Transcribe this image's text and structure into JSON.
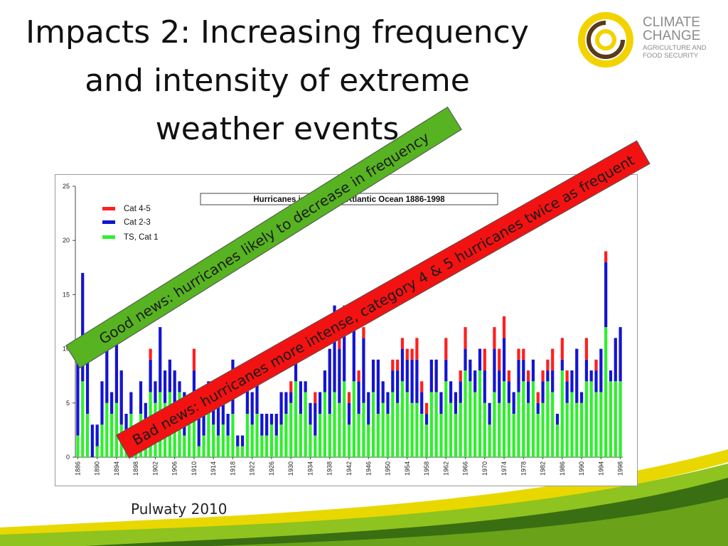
{
  "slide": {
    "title_lines": [
      "Impacts 2: Increasing frequency",
      "and intensity of extreme",
      "weather events"
    ],
    "source": "Pulwaty 2010",
    "good_news": "Good news: hurricanes likely to decrease in frequency",
    "bad_news": "Bad news: hurricanes more intense, category 4 & 5 hurricanes twice as frequent"
  },
  "logo": {
    "line1": "CLIMATE",
    "line2": "CHANGE",
    "line3": "AGRICULTURE AND",
    "line4": "FOOD SECURITY",
    "colors": {
      "ring_outer": "#f2d300",
      "ring_inner": "#5a3a1a",
      "text": "#8a8b8c"
    }
  },
  "colors": {
    "good_banner": "#57b321",
    "bad_banner": "#f21212",
    "bottom_swoosh_yellow": "#e8d800",
    "bottom_swoosh_green": "#8fc31f",
    "bottom_swoosh_dark": "#3a6e12"
  },
  "chart_data": {
    "type": "bar",
    "stacked": true,
    "title": "Hurricanes in the North Atlantic Ocean 1886-1998",
    "ylim": [
      0,
      25
    ],
    "yticks": [
      0,
      5,
      10,
      15,
      20,
      25
    ],
    "grid": false,
    "legend_position": "top-left",
    "x_tick_labels": [
      "1886",
      "1890",
      "1894",
      "1898",
      "1902",
      "1906",
      "1910",
      "1914",
      "1918",
      "1922",
      "1926",
      "1930",
      "1934",
      "1938",
      "1942",
      "1946",
      "1950",
      "1954",
      "1958",
      "1962",
      "1966",
      "1970",
      "1974",
      "1978",
      "1982",
      "1986",
      "1990",
      "1994",
      "1998"
    ],
    "x_start": 1886,
    "x_end": 1998,
    "series": [
      {
        "name": "Cat 4-5",
        "color": "#ff1f1f",
        "values": [
          0,
          0,
          0,
          0,
          0,
          0,
          0,
          0,
          0,
          0,
          0,
          0,
          0,
          0,
          0,
          1,
          0,
          0,
          0,
          0,
          0,
          0,
          0,
          0,
          2,
          0,
          0,
          0,
          1,
          0,
          0,
          0,
          0,
          0,
          0,
          0,
          0,
          0,
          0,
          0,
          0,
          0,
          0,
          0,
          1,
          0,
          0,
          0,
          0,
          1,
          0,
          0,
          0,
          0,
          1,
          1,
          1,
          0,
          1,
          1,
          0,
          0,
          0,
          0,
          0,
          1,
          1,
          1,
          1,
          1,
          2,
          1,
          1,
          0,
          0,
          0,
          2,
          0,
          0,
          1,
          2,
          0,
          0,
          0,
          2,
          0,
          2,
          2,
          2,
          1,
          0,
          1,
          1,
          1,
          0,
          1,
          1,
          1,
          2,
          0,
          2,
          1,
          0,
          0,
          0,
          2,
          0,
          1,
          0,
          1,
          0,
          0,
          0
        ]
      },
      {
        "name": "Cat 2-3",
        "color": "#1414d2",
        "values": [
          8,
          10,
          5,
          3,
          2,
          4,
          6,
          2,
          6,
          5,
          2,
          2,
          1,
          3,
          2,
          3,
          2,
          6,
          3,
          3,
          3,
          1,
          4,
          1,
          3,
          5,
          4,
          2,
          3,
          5,
          3,
          2,
          5,
          1,
          1,
          3,
          3,
          5,
          2,
          2,
          1,
          2,
          3,
          2,
          1,
          2,
          3,
          1,
          2,
          3,
          2,
          2,
          6,
          8,
          5,
          6,
          2,
          5,
          3,
          6,
          3,
          3,
          5,
          2,
          2,
          2,
          3,
          3,
          3,
          4,
          4,
          2,
          1,
          3,
          3,
          2,
          2,
          2,
          2,
          2,
          2,
          2,
          2,
          2,
          3,
          2,
          4,
          3,
          4,
          2,
          2,
          3,
          2,
          2,
          2,
          1,
          2,
          1,
          2,
          1,
          1,
          2,
          2,
          5,
          1,
          2,
          1,
          2,
          4,
          6,
          1,
          4,
          5
        ]
      },
      {
        "name": "TS, Cat 1",
        "color": "#2ef02e",
        "values": [
          2,
          7,
          4,
          0,
          1,
          3,
          5,
          4,
          5,
          3,
          2,
          4,
          2,
          4,
          3,
          6,
          5,
          6,
          5,
          6,
          5,
          6,
          2,
          4,
          5,
          1,
          2,
          5,
          3,
          2,
          3,
          2,
          4,
          1,
          1,
          4,
          3,
          4,
          2,
          2,
          3,
          2,
          3,
          4,
          5,
          7,
          4,
          6,
          3,
          2,
          4,
          6,
          4,
          6,
          5,
          7,
          3,
          7,
          4,
          5,
          3,
          6,
          4,
          5,
          4,
          6,
          5,
          7,
          6,
          5,
          5,
          4,
          3,
          6,
          6,
          4,
          7,
          5,
          4,
          5,
          8,
          7,
          6,
          8,
          5,
          3,
          6,
          5,
          7,
          5,
          4,
          6,
          7,
          5,
          7,
          4,
          5,
          7,
          6,
          3,
          8,
          5,
          6,
          5,
          5,
          7,
          7,
          6,
          6,
          12,
          7,
          7,
          7
        ]
      }
    ]
  }
}
